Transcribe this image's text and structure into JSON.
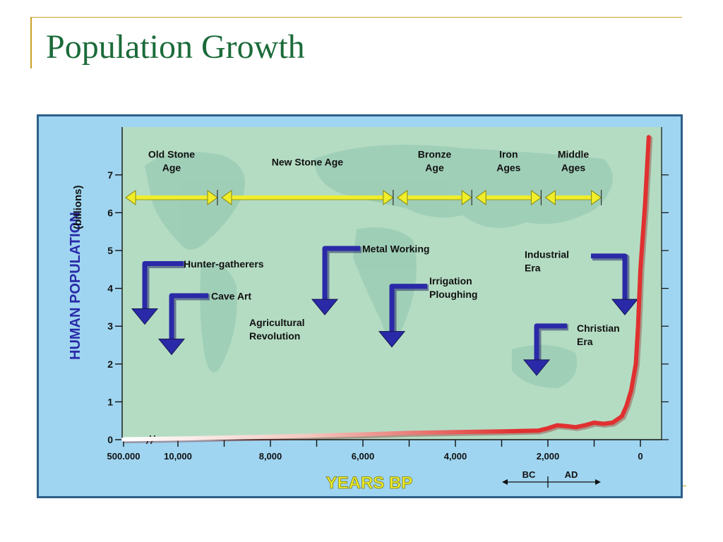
{
  "slide": {
    "title": "Population Growth"
  },
  "colors": {
    "title": "#1b6b3a",
    "accent_rule": "#c9a227",
    "frame_bg": "#9fd5f0",
    "plot_bg": "#b4dcc3",
    "era_bar": "#f0ee2a",
    "event_arrow": "#2a2aa8",
    "population_line": "#e03030",
    "xlabel": "#f0ee2a",
    "ylabel": "#2a2aa8"
  },
  "chart_data": {
    "type": "line",
    "title": "",
    "xlabel": "YEARS BP",
    "ylabel": "HUMAN POPULATION",
    "ylabel_unit": "(billions)",
    "ylim": [
      0,
      8
    ],
    "yticks": [
      "0",
      "1",
      "2",
      "3",
      "4",
      "5",
      "6",
      "7"
    ],
    "xtick_labels": [
      "500.000",
      "10,000",
      "8,000",
      "6,000",
      "4,000",
      "2,000",
      "0"
    ],
    "xtick_positions_years_bp": [
      12000,
      10000,
      8000,
      6000,
      4000,
      2000,
      0
    ],
    "x_axis_note": "Axis is broken between 500,000 and 10,000 years BP",
    "era_divider": {
      "left": "BC",
      "right": "AD",
      "years_bp": 2000
    },
    "eras": [
      {
        "label": "Old Stone Age",
        "start": 12000,
        "end": 9100
      },
      {
        "label": "New Stone Age",
        "start": 9100,
        "end": 5300
      },
      {
        "label": "Bronze Age",
        "start": 5300,
        "end": 3600
      },
      {
        "label": "Iron Ages",
        "start": 3600,
        "end": 2100
      },
      {
        "label": "Middle Ages",
        "start": 2100,
        "end": 800
      }
    ],
    "events": [
      {
        "label": "Hunter-gatherers",
        "years_bp": 11600
      },
      {
        "label": "Cave Art",
        "years_bp": 10800
      },
      {
        "label": "Agricultural Revolution",
        "years_bp": null
      },
      {
        "label": "Metal Working",
        "years_bp": 7000
      },
      {
        "label": "Irrigation Ploughing",
        "years_bp": 5500
      },
      {
        "label": "Christian Era",
        "years_bp": 2300
      },
      {
        "label": "Industrial Era",
        "years_bp": 300
      }
    ],
    "series": [
      {
        "x": [
          12000,
          10000,
          8000,
          6000,
          5000,
          4000,
          3000,
          2200,
          2000,
          1800,
          1600,
          1400,
          1200,
          1000,
          800,
          600,
          400,
          300,
          200,
          100,
          50,
          0,
          -100,
          -180
        ],
        "y": [
          0.01,
          0.03,
          0.08,
          0.14,
          0.18,
          0.2,
          0.22,
          0.24,
          0.3,
          0.38,
          0.36,
          0.33,
          0.38,
          0.45,
          0.42,
          0.45,
          0.62,
          0.9,
          1.3,
          2.0,
          3.0,
          4.5,
          6.2,
          8.0
        ]
      }
    ]
  }
}
